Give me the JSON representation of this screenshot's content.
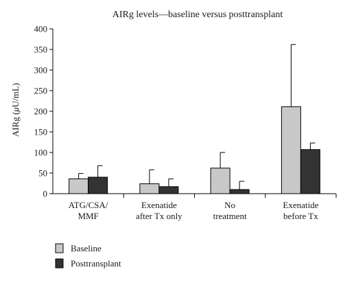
{
  "chart_data": {
    "type": "bar",
    "title": "AIRg levels—baseline versus posttransplant",
    "ylabel_prefix": "AIRg (",
    "ylabel_mu": "μ",
    "ylabel_suffix": "U/mL)",
    "ylim": [
      0,
      400
    ],
    "yticks": [
      "0",
      "50",
      "100",
      "150",
      "200",
      "250",
      "300",
      "350",
      "400"
    ],
    "categories": [
      [
        "ATG/CSA/",
        "MMF"
      ],
      [
        "Exenatide",
        "after Tx only"
      ],
      [
        "No",
        "treatment"
      ],
      [
        "Exenatide",
        "before Tx"
      ]
    ],
    "series": [
      {
        "name": "Baseline",
        "color": "#c8c8c8",
        "values": [
          36,
          24,
          62,
          211
        ],
        "errors": [
          13,
          34,
          38,
          151
        ]
      },
      {
        "name": "Posttransplant",
        "color": "#333333",
        "values": [
          40,
          17,
          10,
          107
        ],
        "errors": [
          28,
          19,
          20,
          16
        ]
      }
    ],
    "grid": false,
    "legend_position": "bottom-left"
  }
}
